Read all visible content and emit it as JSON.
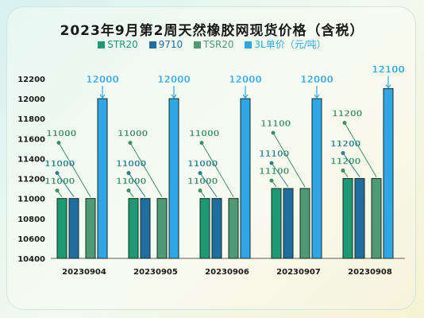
{
  "title": "2023年9月第2周天然橡胶网现货价格（含税）",
  "colors": {
    "STR20": "#1e9a72",
    "9710": "#1f6ea0",
    "TSR20": "#4d9a74",
    "3L": "#2fa6e6",
    "label_green": "#3f8f64",
    "label_teal": "#2e7d8a"
  },
  "chart_data": {
    "type": "bar",
    "title": "2023年9月第2周天然橡胶网现货价格（含税）",
    "categories": [
      "20230904",
      "20230905",
      "20230906",
      "20230907",
      "20230908"
    ],
    "series": [
      {
        "name": "STR20",
        "values": [
          11000,
          11000,
          11000,
          11100,
          11200
        ]
      },
      {
        "name": "9710",
        "values": [
          11000,
          11000,
          11000,
          11100,
          11200
        ]
      },
      {
        "name": "TSR20",
        "values": [
          11000,
          11000,
          11000,
          11100,
          11200
        ]
      },
      {
        "name": "3L单价（元/吨）",
        "values": [
          12000,
          12000,
          12000,
          12000,
          12100
        ]
      }
    ],
    "ylim": [
      10400,
      12200
    ],
    "yticks": [
      10400,
      10600,
      10800,
      11000,
      11200,
      11400,
      11600,
      11800,
      12000,
      12200
    ],
    "xlabel": "",
    "ylabel": "",
    "legend": "top"
  }
}
